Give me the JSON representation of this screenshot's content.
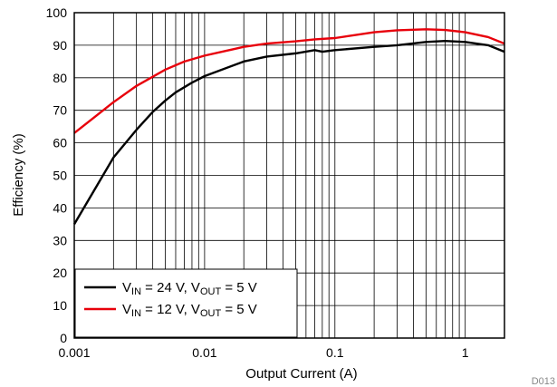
{
  "chart_data": {
    "type": "line",
    "xlabel": "Output Current (A)",
    "ylabel": "Efficiency (%)",
    "xscale": "log",
    "xlim": [
      0.001,
      2
    ],
    "ylim": [
      0,
      100
    ],
    "x_ticks": [
      0.001,
      0.01,
      0.1,
      1
    ],
    "x_tick_labels": [
      "0.001",
      "0.01",
      "0.1",
      "1"
    ],
    "y_ticks": [
      0,
      10,
      20,
      30,
      40,
      50,
      60,
      70,
      80,
      90,
      100
    ],
    "y_tick_labels": [
      "0",
      "10",
      "20",
      "30",
      "40",
      "50",
      "60",
      "70",
      "80",
      "90",
      "100"
    ],
    "grid": true,
    "legend_position": "bottom-left",
    "footnote": "D013",
    "series": [
      {
        "legend": {
          "a": "V",
          "a_sub": "IN",
          "b": " = 24 V, V",
          "b_sub": "OUT",
          "c": " = 5 V"
        },
        "color": "#000000",
        "x": [
          0.001,
          0.002,
          0.003,
          0.004,
          0.005,
          0.006,
          0.008,
          0.01,
          0.02,
          0.03,
          0.05,
          0.07,
          0.08,
          0.1,
          0.2,
          0.3,
          0.5,
          0.7,
          1,
          1.5,
          2
        ],
        "y": [
          35,
          55.5,
          64,
          69.5,
          73,
          75.5,
          78.5,
          80.5,
          85,
          86.5,
          87.5,
          88.5,
          88,
          88.5,
          89.5,
          90,
          91,
          91.3,
          91,
          90,
          88
        ]
      },
      {
        "legend": {
          "a": "V",
          "a_sub": "IN",
          "b": " = 12 V, V",
          "b_sub": "OUT",
          "c": " = 5 V"
        },
        "color": "#e8000b",
        "x": [
          0.001,
          0.002,
          0.003,
          0.005,
          0.007,
          0.01,
          0.02,
          0.03,
          0.05,
          0.07,
          0.1,
          0.2,
          0.3,
          0.5,
          0.7,
          1,
          1.5,
          2
        ],
        "y": [
          63,
          72.5,
          77.5,
          82.5,
          85,
          86.8,
          89.5,
          90.5,
          91.2,
          91.8,
          92.2,
          94,
          94.6,
          94.9,
          94.7,
          94,
          92.5,
          90.5
        ]
      }
    ]
  }
}
